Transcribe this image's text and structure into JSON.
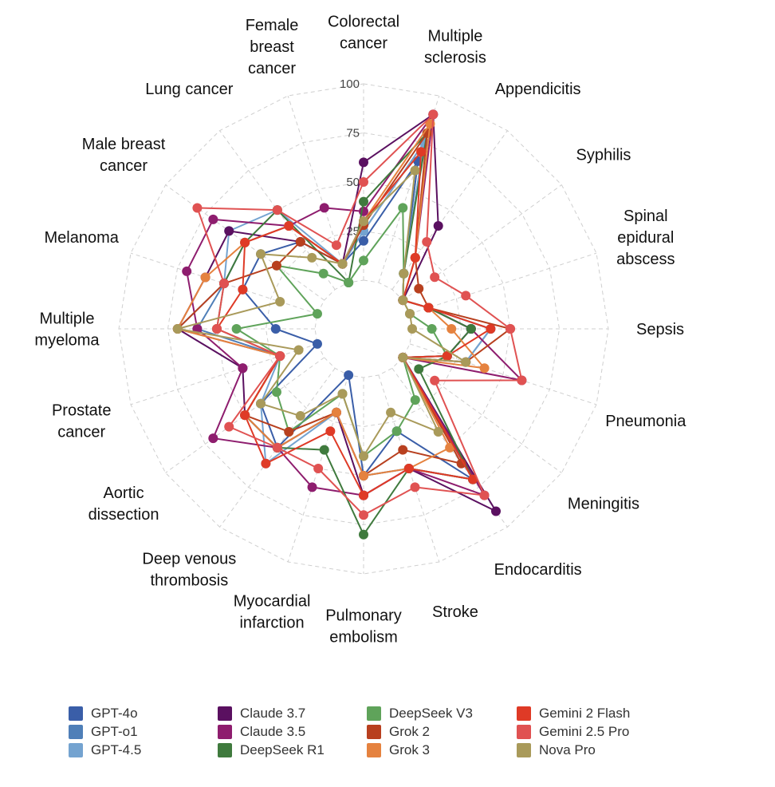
{
  "chart_data": {
    "type": "radar",
    "rlim": [
      0,
      100
    ],
    "rticks": [
      "25",
      "50",
      "75",
      "100"
    ],
    "grid": true,
    "legend_position": "bottom",
    "categories": [
      "Colorectal\ncancer",
      "Multiple\nsclerosis",
      "Appendicitis",
      "Syphilis",
      "Spinal\nepidural\nabscess",
      "Sepsis",
      "Pneumonia",
      "Meningitis",
      "Endocarditis",
      "Stroke",
      "Pulmonary\nembolism",
      "Myocardial\ninfarction",
      "Deep venous\nthrombosis",
      "Aortic\ndissection",
      "Prostate\ncancer",
      "Multiple\nmyeloma",
      "Melanoma",
      "Male breast\ncancer",
      "Lung cancer",
      "Female\nbreast\ncancer"
    ],
    "series": [
      {
        "name": "GPT-4o",
        "color": "#3a5ea8",
        "values": [
          20,
          65,
          10,
          0,
          10,
          30,
          20,
          0,
          70,
          30,
          50,
          0,
          50,
          40,
          0,
          20,
          40,
          40,
          30,
          10
        ]
      },
      {
        "name": "GPT-o1",
        "color": "#4f7fb8",
        "values": [
          25,
          75,
          10,
          0,
          10,
          40,
          30,
          0,
          70,
          50,
          50,
          20,
          50,
          50,
          20,
          60,
          50,
          50,
          40,
          10
        ]
      },
      {
        "name": "GPT-4.5",
        "color": "#74a3d0",
        "values": [
          25,
          75,
          10,
          0,
          10,
          40,
          30,
          0,
          70,
          50,
          50,
          20,
          60,
          40,
          20,
          70,
          50,
          60,
          50,
          10
        ]
      },
      {
        "name": "Claude 3.7",
        "color": "#5a1060",
        "values": [
          60,
          90,
          40,
          0,
          10,
          30,
          20,
          0,
          90,
          50,
          60,
          20,
          50,
          50,
          40,
          70,
          60,
          60,
          30,
          10
        ]
      },
      {
        "name": "Claude 3.5",
        "color": "#8e1d6e",
        "values": [
          35,
          90,
          20,
          0,
          10,
          30,
          60,
          0,
          80,
          50,
          60,
          60,
          50,
          70,
          40,
          60,
          70,
          70,
          40,
          40
        ]
      },
      {
        "name": "DeepSeek R1",
        "color": "#3f7a3d",
        "values": [
          40,
          80,
          10,
          0,
          10,
          30,
          20,
          10,
          70,
          50,
          80,
          40,
          50,
          50,
          20,
          50,
          50,
          50,
          50,
          0
        ]
      },
      {
        "name": "DeepSeek V3",
        "color": "#5fa35a",
        "values": [
          10,
          40,
          10,
          0,
          0,
          10,
          20,
          0,
          20,
          30,
          40,
          10,
          40,
          30,
          20,
          40,
          0,
          30,
          10,
          0
        ]
      },
      {
        "name": "Grok 2",
        "color": "#b8401f",
        "values": [
          28,
          80,
          20,
          10,
          10,
          50,
          30,
          0,
          60,
          40,
          50,
          20,
          40,
          50,
          20,
          70,
          50,
          30,
          30,
          10
        ]
      },
      {
        "name": "Grok 3",
        "color": "#e5823f",
        "values": [
          30,
          85,
          20,
          0,
          10,
          20,
          40,
          0,
          50,
          50,
          50,
          20,
          50,
          50,
          20,
          70,
          60,
          50,
          40,
          10
        ]
      },
      {
        "name": "Gemini 2 Flash",
        "color": "#df3a26",
        "values": [
          30,
          70,
          20,
          0,
          10,
          40,
          20,
          0,
          70,
          50,
          60,
          30,
          60,
          50,
          20,
          50,
          40,
          50,
          40,
          10
        ]
      },
      {
        "name": "Gemini 2.5 Pro",
        "color": "#e05252",
        "values": [
          50,
          90,
          30,
          20,
          30,
          50,
          60,
          20,
          80,
          60,
          70,
          50,
          50,
          60,
          20,
          50,
          50,
          80,
          50,
          20
        ]
      },
      {
        "name": "Nova Pro",
        "color": "#a99a5a",
        "values": [
          30,
          60,
          10,
          0,
          0,
          0,
          30,
          0,
          40,
          20,
          40,
          10,
          30,
          40,
          10,
          70,
          20,
          40,
          20,
          10
        ]
      }
    ]
  }
}
